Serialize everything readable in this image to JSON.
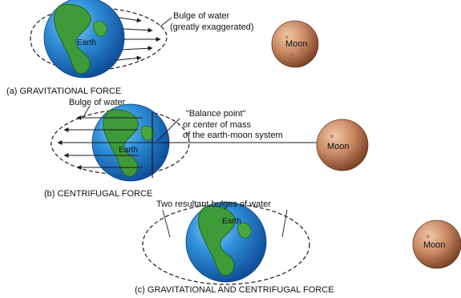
{
  "panel_a": {
    "caption": "(a) GRAVITATIONAL FORCE",
    "bulge_label_line1": "Bulge of water",
    "bulge_label_line2": "(greatly exaggerated)",
    "earth_label": "Earth",
    "moon_label": "Moon"
  },
  "panel_b": {
    "caption": "(b) CENTRIFUGAL FORCE",
    "bulge_label": "Bulge of water",
    "balance_label_line1": "\"Balance point\"",
    "balance_label_line2": "or center of mass",
    "balance_label_line3": "of the earth-moon system",
    "earth_label": "Earth",
    "moon_label": "Moon"
  },
  "panel_c": {
    "caption": "(c) GRAVITATIONAL AND CENTRIFUGAL FORCE",
    "bulges_label": "Two resultant bulges of water",
    "earth_label": "Earth",
    "moon_label": "Moon"
  },
  "colors": {
    "ocean": "#2f8fd8",
    "ocean_dark": "#0f4f9a",
    "land": "#3f9a3a",
    "land_dark": "#1f6a22",
    "moon": "#c98a64",
    "moon_dark": "#7a4024",
    "line": "#1a1a1a"
  }
}
